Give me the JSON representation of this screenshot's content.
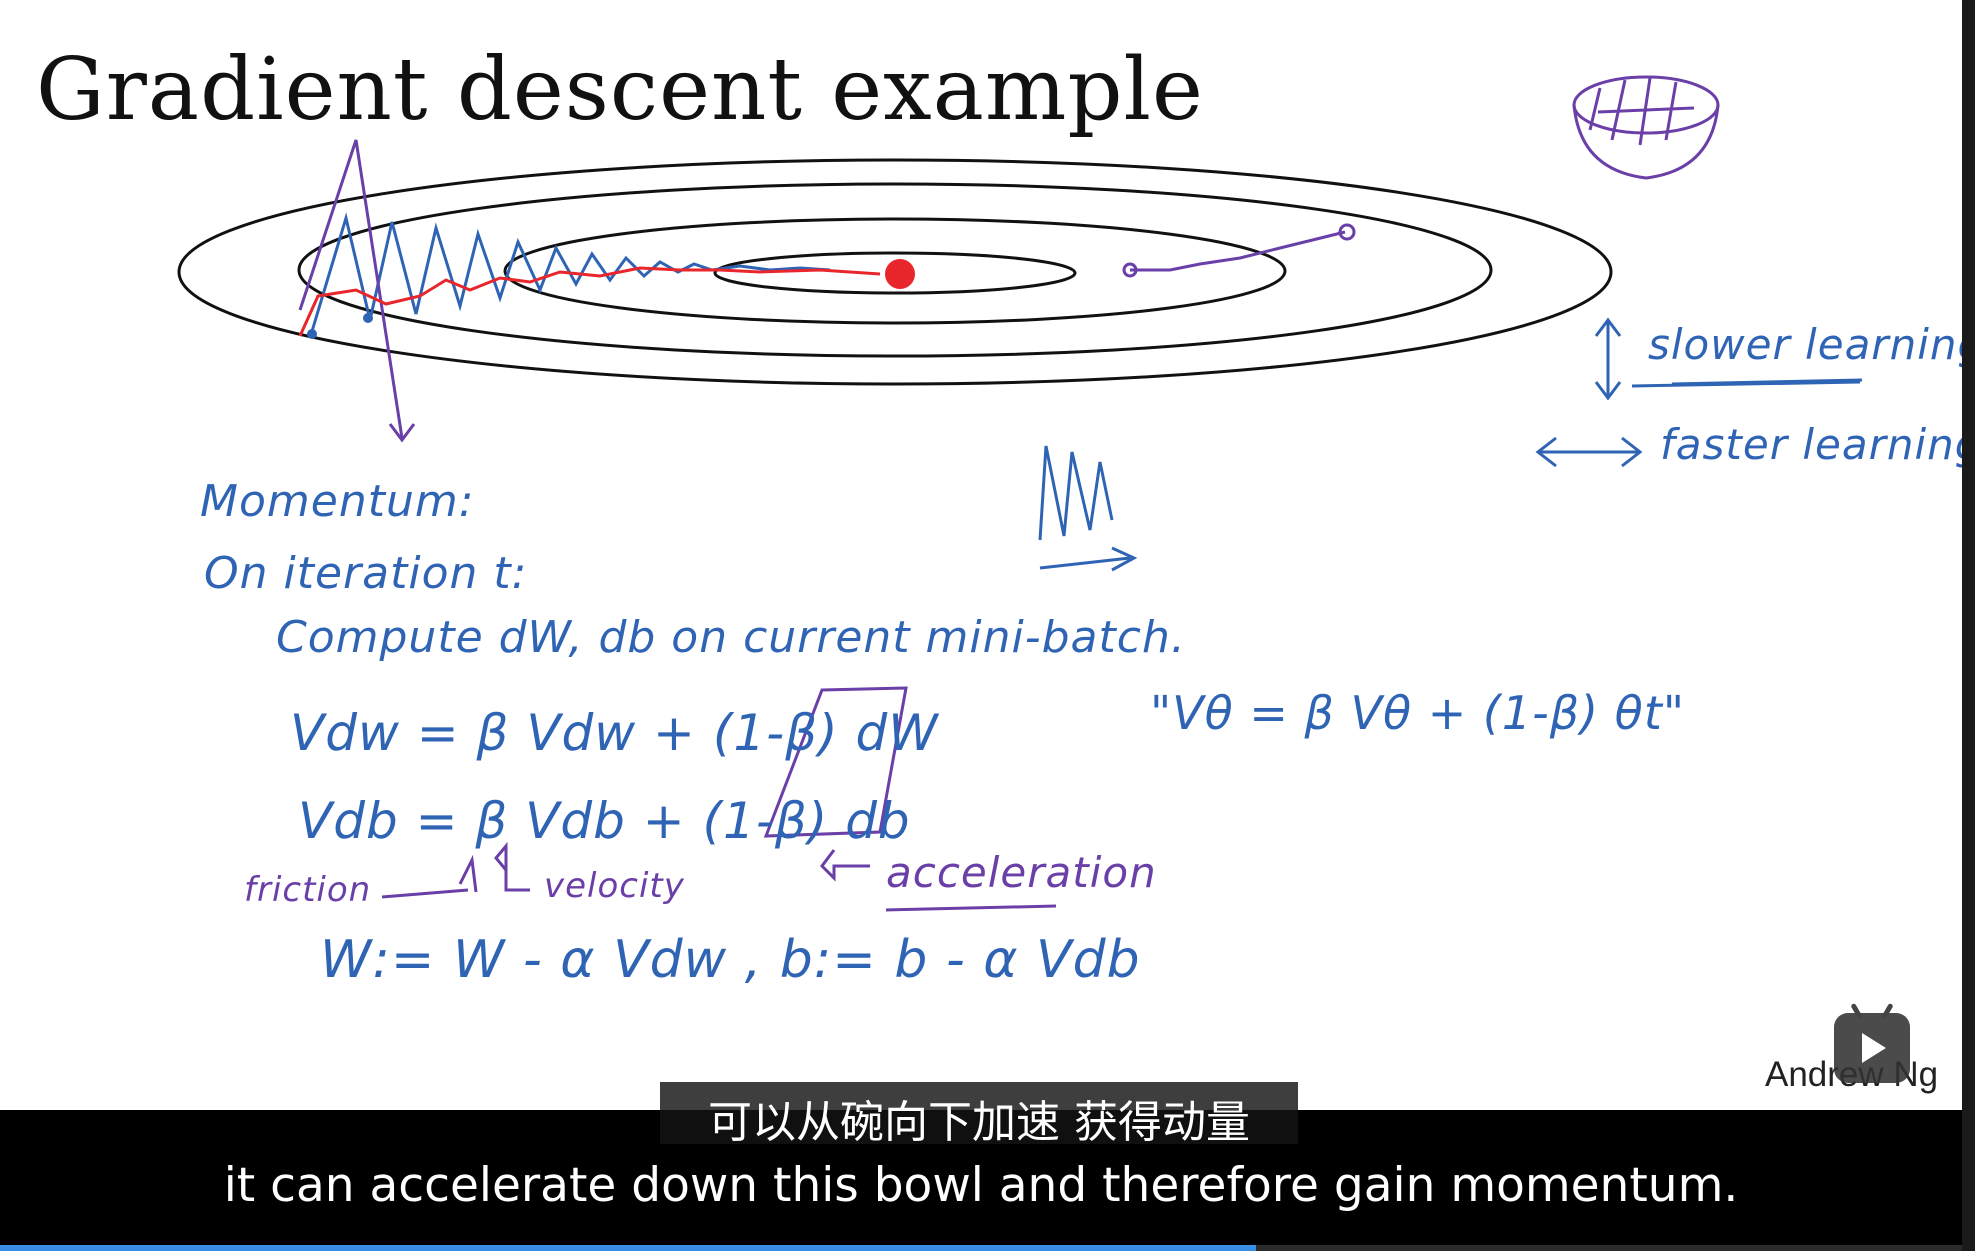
{
  "slide": {
    "title": "Gradient descent example",
    "author": "Andrew Ng"
  },
  "notes": {
    "slower": "slower learning",
    "faster": "faster learning.",
    "momentum": "Momentum:",
    "iteration": "On iteration t:",
    "compute": "Compute dW, db on current mini-batch.",
    "vdw": "Vdw = β Vdw + (1-β) dW",
    "vdb": "Vdb = β Vdb + (1-β) db",
    "ewa": "\"Vθ = β Vθ + (1-β) θt\"",
    "friction": "friction",
    "velocity": "velocity",
    "acceleration": "acceleration",
    "update": "W:= W - α Vdw ,  b:= b - α Vdb"
  },
  "subtitles": {
    "zh": "可以从碗向下加速 获得动量",
    "en": "it can accelerate down this bowl and therefore gain momentum."
  },
  "player": {
    "progress": 0.64,
    "accent": "#3a8ee6"
  },
  "colors": {
    "ink_blue": "#2f64b5",
    "ink_red": "#e8262c",
    "ink_purple": "#6a3fa8"
  },
  "icons": {
    "player_badge": "play-icon"
  }
}
